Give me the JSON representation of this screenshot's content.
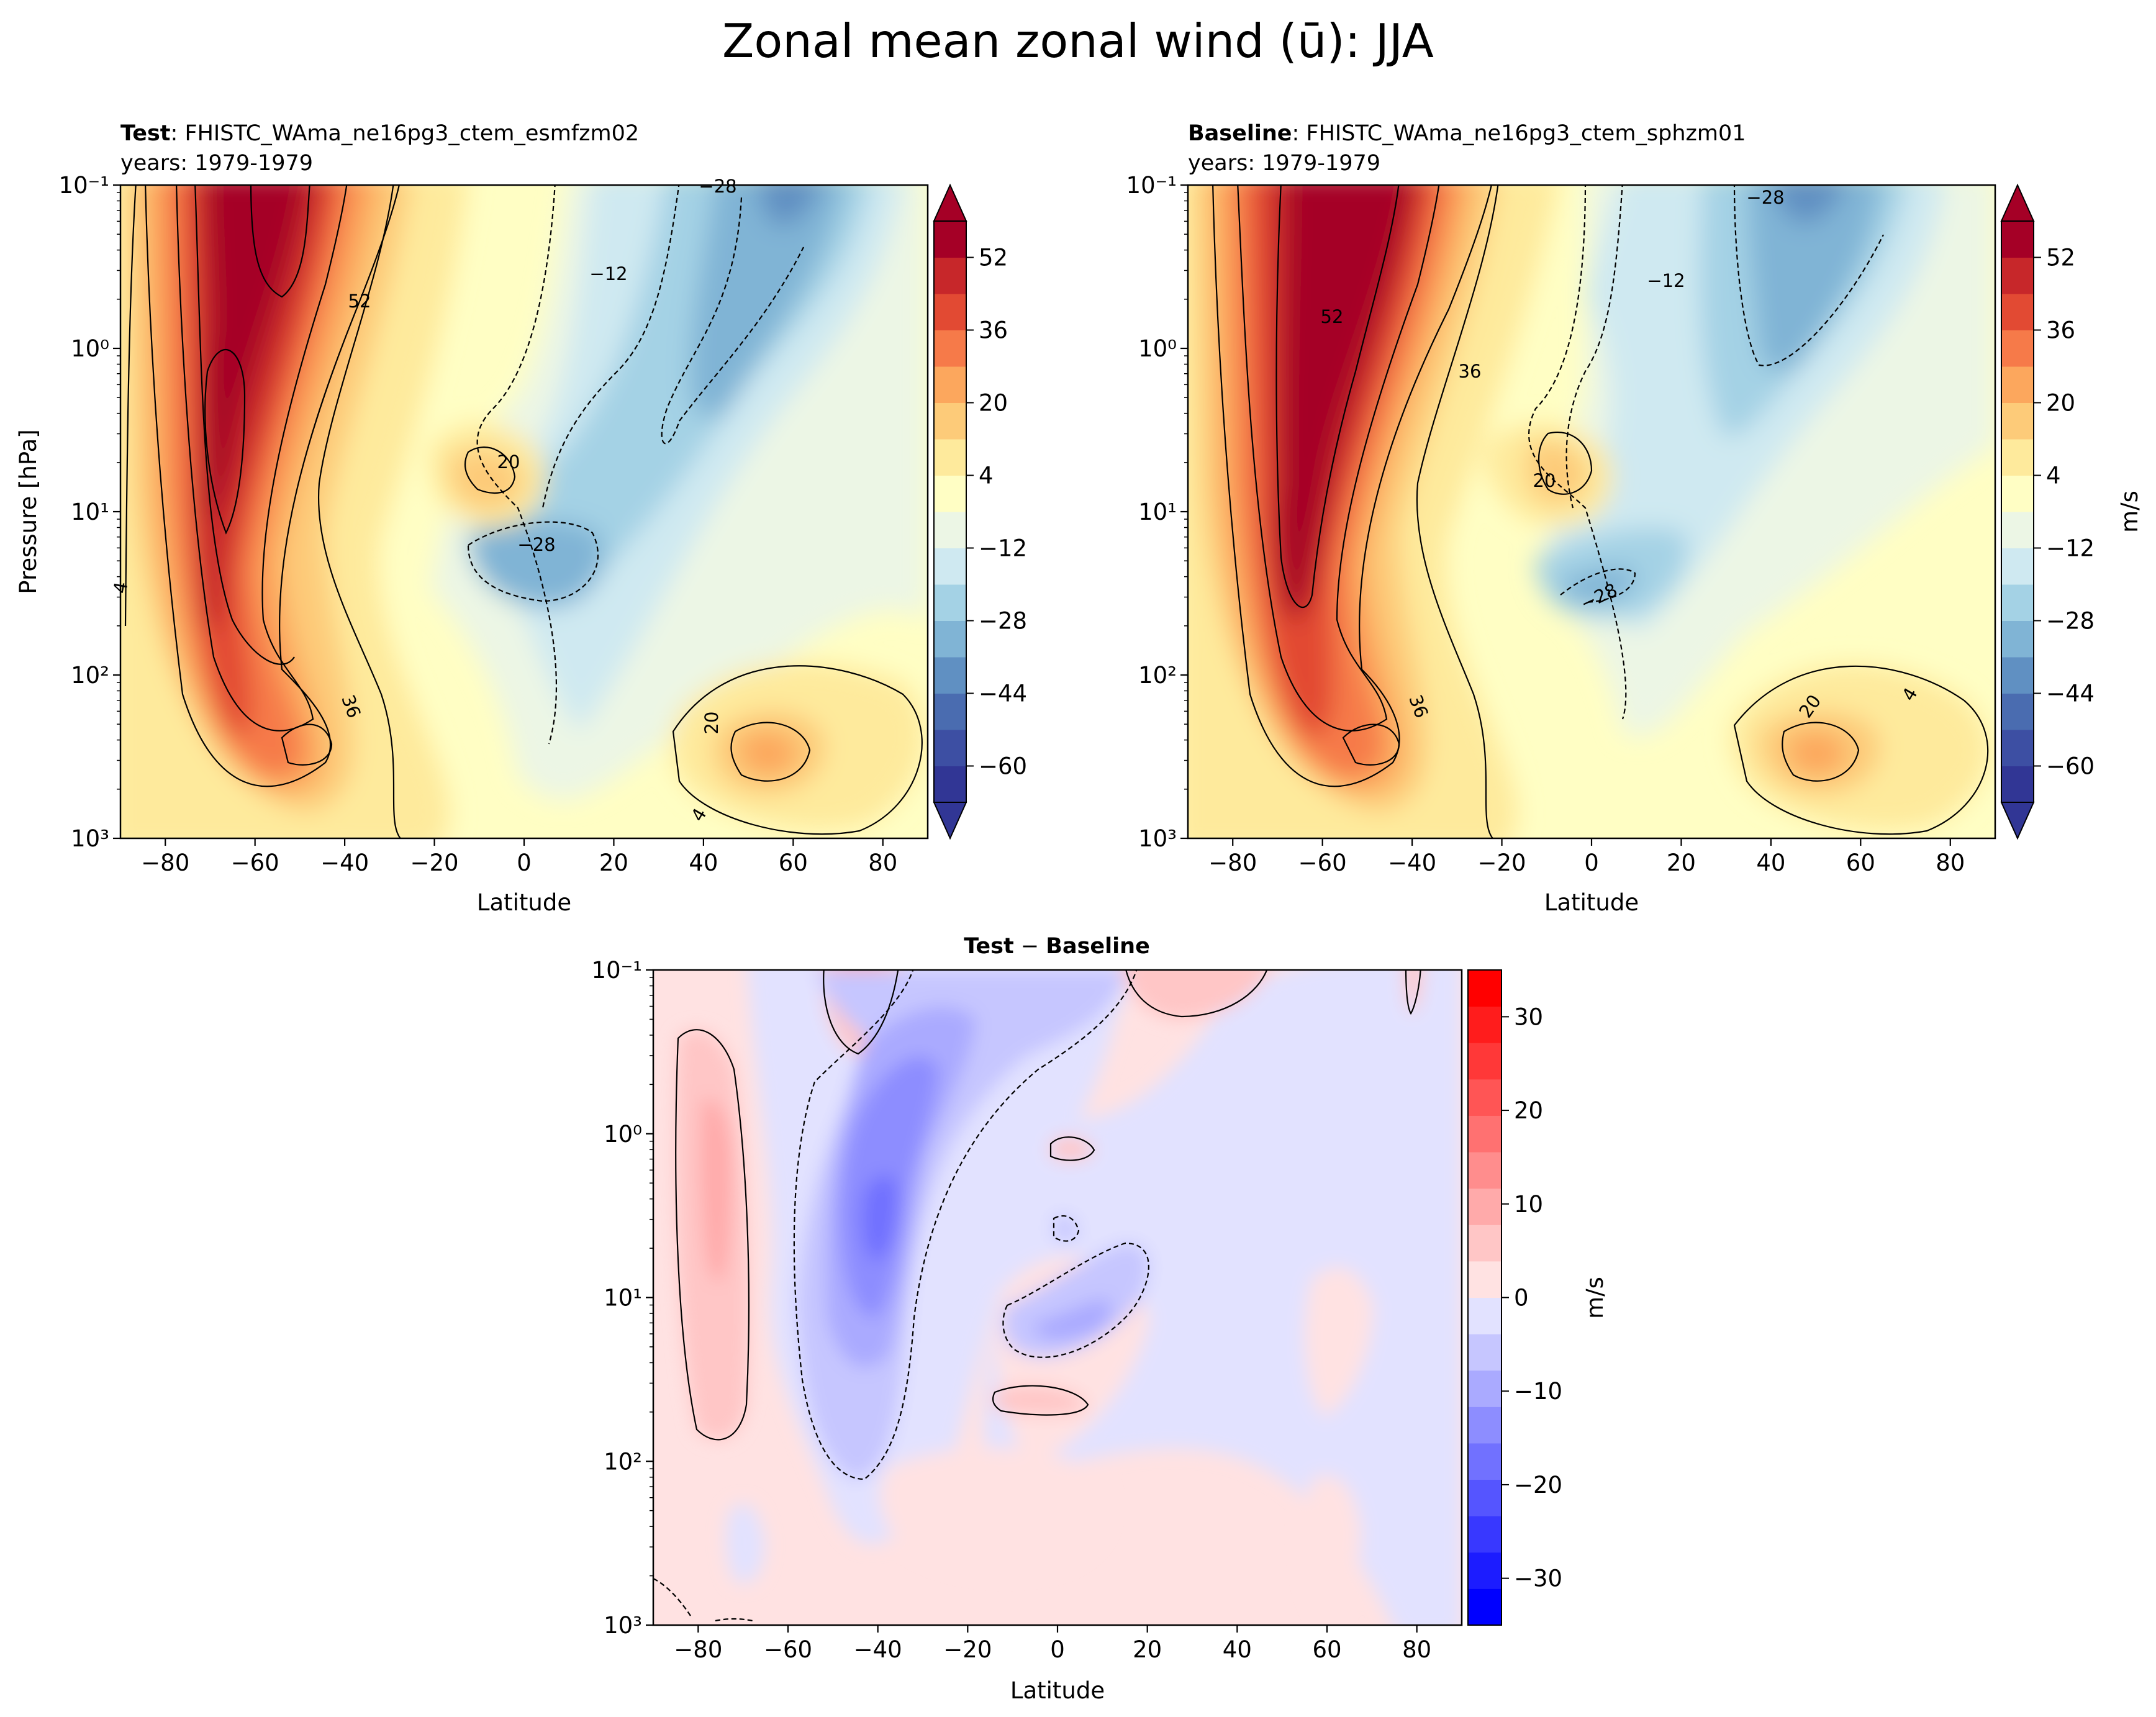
{
  "figure": {
    "title": "Zonal mean zonal wind (ū): JJA"
  },
  "panels": {
    "test": {
      "label_bold": "Test",
      "label_rest": ": FHISTC_WAma_ne16pg3_ctem_esmfzm02",
      "years": "years: 1979-1979"
    },
    "baseline": {
      "label_bold": "Baseline",
      "label_rest": ": FHISTC_WAma_ne16pg3_ctem_sphzm01",
      "years": "years: 1979-1979"
    },
    "diff": {
      "label_left": "Test",
      "label_mid": " − ",
      "label_right": "Baseline"
    }
  },
  "axes": {
    "xlabel": "Latitude",
    "ylabel": "Pressure [hPa]",
    "colorbar_unit": "m/s"
  },
  "colors": {
    "wind_levels": [
      "#313695",
      "#3d4fa3",
      "#4a6cb0",
      "#6090c2",
      "#80b4d5",
      "#a4d2e5",
      "#cfe9f1",
      "#ecf6e5",
      "#fffec4",
      "#feea9c",
      "#fdcb79",
      "#fca75d",
      "#f67a49",
      "#e24a33",
      "#c7272a",
      "#a50026"
    ],
    "diff_levels": [
      "#0000ff",
      "#1c1cff",
      "#3838ff",
      "#5555ff",
      "#7171ff",
      "#8d8dff",
      "#aaaaff",
      "#c6c6ff",
      "#e2e2ff",
      "#ffe2e2",
      "#ffc6c6",
      "#ffaaaa",
      "#ff8d8d",
      "#ff7171",
      "#ff5555",
      "#ff3838",
      "#ff1c1c",
      "#ff0000"
    ]
  },
  "chart_data": [
    {
      "type": "contour",
      "panel": "test",
      "x": {
        "label": "Latitude",
        "range": [
          -90,
          90
        ],
        "ticks": [
          -80,
          -60,
          -40,
          -20,
          0,
          20,
          40,
          60,
          80
        ]
      },
      "y": {
        "label": "Pressure [hPa]",
        "scale": "log",
        "range": [
          1000,
          0.1
        ],
        "ticks": [
          "10⁻¹",
          "10⁰",
          "10¹",
          "10²",
          "10³"
        ]
      },
      "levels": [
        -60,
        -52,
        -44,
        -36,
        -28,
        -20,
        -12,
        -4,
        4,
        12,
        20,
        28,
        36,
        44,
        52,
        60
      ],
      "contour_labels": [
        "52",
        "−28",
        "−12",
        "20",
        "−28",
        "36",
        "20",
        "4",
        "4"
      ],
      "colorbar": {
        "ticks": [
          "52",
          "36",
          "20",
          "4",
          "−12",
          "−28",
          "−44",
          "−60"
        ],
        "extend": "both"
      }
    },
    {
      "type": "contour",
      "panel": "baseline",
      "x": {
        "label": "Latitude",
        "range": [
          -90,
          90
        ],
        "ticks": [
          -80,
          -60,
          -40,
          -20,
          0,
          20,
          40,
          60,
          80
        ]
      },
      "y": {
        "label": "",
        "scale": "log",
        "range": [
          1000,
          0.1
        ],
        "ticks": [
          "10⁻¹",
          "10⁰",
          "10¹",
          "10²",
          "10³"
        ]
      },
      "levels": [
        -60,
        -52,
        -44,
        -36,
        -28,
        -20,
        -12,
        -4,
        4,
        12,
        20,
        28,
        36,
        44,
        52,
        60
      ],
      "contour_labels": [
        "−28",
        "−12",
        "52",
        "36",
        "20",
        "−28",
        "36",
        "20",
        "4"
      ],
      "colorbar": {
        "ticks": [
          "52",
          "36",
          "20",
          "4",
          "−12",
          "−28",
          "−44",
          "−60"
        ],
        "extend": "both",
        "label": "m/s"
      }
    },
    {
      "type": "contour",
      "panel": "diff",
      "x": {
        "label": "Latitude",
        "range": [
          -90,
          90
        ],
        "ticks": [
          -80,
          -60,
          -40,
          -20,
          0,
          20,
          40,
          60,
          80
        ]
      },
      "y": {
        "label": "",
        "scale": "log",
        "range": [
          1000,
          0.1
        ],
        "ticks": [
          "10⁻¹",
          "10⁰",
          "10¹",
          "10²",
          "10³"
        ]
      },
      "levels": [
        -35,
        -30,
        -25,
        -20,
        -15,
        -10,
        -5,
        0,
        5,
        10,
        15,
        20,
        25,
        30,
        35
      ],
      "colorbar": {
        "ticks": [
          "30",
          "20",
          "10",
          "0",
          "−10",
          "−20",
          "−30"
        ],
        "range": [
          -35,
          35
        ],
        "label": "m/s"
      }
    }
  ]
}
